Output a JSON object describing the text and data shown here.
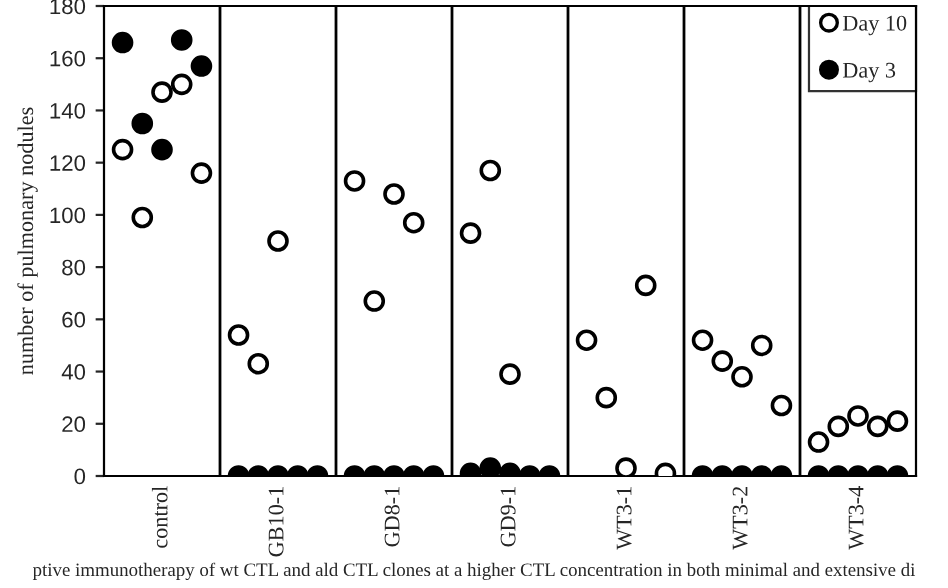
{
  "chart_data": {
    "type": "scatter",
    "ylabel": "number of pulmonary nodules",
    "categories": [
      "control",
      "GB10-1",
      "GD8-1",
      "GD9-1",
      "WT3-1",
      "WT3-2",
      "WT3-4"
    ],
    "series": [
      {
        "name": "Day 10",
        "color": "#ffffff",
        "x": [
          "control",
          "control",
          "control",
          "control",
          "control",
          "GB10-1",
          "GB10-1",
          "GB10-1",
          "GB10-1",
          "GB10-1",
          "GD8-1",
          "GD8-1",
          "GD8-1",
          "GD8-1",
          "GD8-1",
          "GD9-1",
          "GD9-1",
          "GD9-1",
          "GD9-1",
          "GD9-1",
          "WT3-1",
          "WT3-1",
          "WT3-1",
          "WT3-1",
          "WT3-1",
          "WT3-2",
          "WT3-2",
          "WT3-2",
          "WT3-2",
          "WT3-2",
          "WT3-4",
          "WT3-4",
          "WT3-4",
          "WT3-4",
          "WT3-4"
        ],
        "values": [
          125,
          99,
          147,
          150,
          116,
          54,
          43,
          90,
          null,
          null,
          113,
          67,
          108,
          97,
          null,
          93,
          117,
          39,
          null,
          null,
          52,
          30,
          3,
          73,
          1,
          52,
          44,
          38,
          50,
          27,
          13,
          19,
          23,
          19,
          21
        ]
      },
      {
        "name": "Day 3",
        "color": "#000000",
        "x": [
          "control",
          "control",
          "control",
          "control",
          "control",
          "GB10-1",
          "GB10-1",
          "GB10-1",
          "GB10-1",
          "GB10-1",
          "GD8-1",
          "GD8-1",
          "GD8-1",
          "GD8-1",
          "GD8-1",
          "GD9-1",
          "GD9-1",
          "GD9-1",
          "GD9-1",
          "GD9-1",
          "WT3-2",
          "WT3-2",
          "WT3-2",
          "WT3-2",
          "WT3-2",
          "WT3-4",
          "WT3-4",
          "WT3-4",
          "WT3-4",
          "WT3-4"
        ],
        "values": [
          166,
          135,
          125,
          167,
          157,
          0,
          0,
          0,
          0,
          0,
          0,
          0,
          0,
          0,
          0,
          1,
          3,
          1,
          0,
          0,
          0,
          0,
          0,
          0,
          0,
          0,
          0,
          0,
          0,
          0
        ]
      }
    ],
    "ylim": [
      0,
      180
    ],
    "yticks": [
      0,
      20,
      40,
      60,
      80,
      100,
      120,
      140,
      160,
      180
    ],
    "marker": "circle",
    "legend": "top right",
    "grid": false,
    "annotations": [
      "ptive immunotherapy of wt CTL and ald CTL clones at a higher CTL concentration in both minimal and extensive di"
    ]
  }
}
